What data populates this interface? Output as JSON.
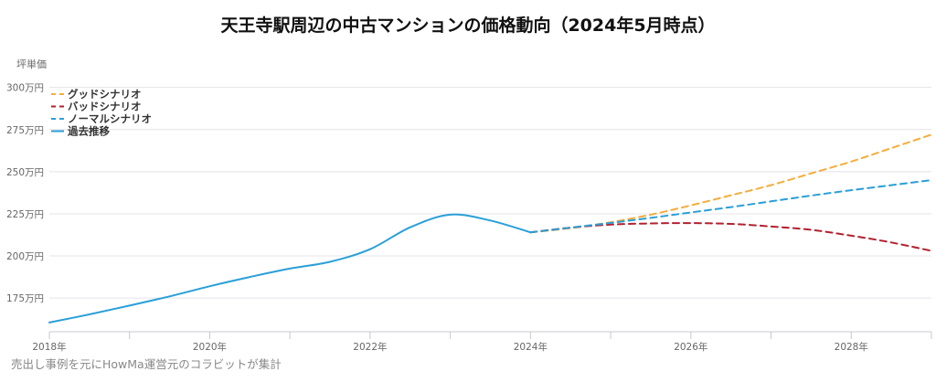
{
  "chart_data": {
    "type": "line",
    "title": "天王寺駅周辺の中古マンションの価格動向（2024年5月時点）",
    "ylabel": "坪単価",
    "xlabel": "",
    "source": "売出し事例を元にHowMa運営元のコラビットが集計",
    "ylim": [
      155,
      302
    ],
    "xlim": [
      2018,
      2029.0
    ],
    "yticks": [
      {
        "value": 175,
        "label": "175万円"
      },
      {
        "value": 200,
        "label": "200万円"
      },
      {
        "value": 225,
        "label": "225万円"
      },
      {
        "value": 250,
        "label": "250万円"
      },
      {
        "value": 275,
        "label": "275万円"
      },
      {
        "value": 300,
        "label": "300万円"
      }
    ],
    "xticks": [
      {
        "value": 2018,
        "label": "2018年"
      },
      {
        "value": 2020,
        "label": "2020年"
      },
      {
        "value": 2022,
        "label": "2022年"
      },
      {
        "value": 2024,
        "label": "2024年"
      },
      {
        "value": 2026,
        "label": "2026年"
      },
      {
        "value": 2028,
        "label": "2028年"
      }
    ],
    "minor_xticks": [
      2019,
      2021,
      2023,
      2025,
      2027,
      2029
    ],
    "grid": true,
    "legend_position": "top-left",
    "series": [
      {
        "name": "グッドシナリオ",
        "color": "#f6ad3c",
        "dash": true,
        "points": [
          [
            2024.0,
            214
          ],
          [
            2024.5,
            216.5
          ],
          [
            2025.0,
            220
          ],
          [
            2025.5,
            224.5
          ],
          [
            2026.0,
            230
          ],
          [
            2026.5,
            236
          ],
          [
            2027.0,
            242
          ],
          [
            2027.5,
            249
          ],
          [
            2028.0,
            256
          ],
          [
            2028.5,
            264
          ],
          [
            2029.0,
            272
          ]
        ]
      },
      {
        "name": "バッドシナリオ",
        "color": "#b2212f",
        "dash": true,
        "points": [
          [
            2024.0,
            214
          ],
          [
            2024.5,
            216.8
          ],
          [
            2025.0,
            218.6
          ],
          [
            2025.5,
            219.3
          ],
          [
            2026.0,
            219.5
          ],
          [
            2026.5,
            219
          ],
          [
            2027.0,
            217.5
          ],
          [
            2027.5,
            215.5
          ],
          [
            2028.0,
            212
          ],
          [
            2028.5,
            208
          ],
          [
            2029.0,
            203
          ]
        ]
      },
      {
        "name": "ノーマルシナリオ",
        "color": "#2a9fd8",
        "dash": true,
        "points": [
          [
            2024.0,
            214
          ],
          [
            2024.5,
            216.8
          ],
          [
            2025.0,
            219.6
          ],
          [
            2025.5,
            222.6
          ],
          [
            2026.0,
            225.8
          ],
          [
            2026.5,
            229
          ],
          [
            2027.0,
            232.4
          ],
          [
            2027.5,
            235.8
          ],
          [
            2028.0,
            239
          ],
          [
            2028.5,
            242
          ],
          [
            2029.0,
            245
          ]
        ]
      },
      {
        "name": "過去推移",
        "color": "#2a9fd8",
        "dash": false,
        "points": [
          [
            2018.0,
            160.5
          ],
          [
            2018.5,
            165.3
          ],
          [
            2019.0,
            170.5
          ],
          [
            2019.5,
            176
          ],
          [
            2020.0,
            182
          ],
          [
            2020.5,
            187.5
          ],
          [
            2021.0,
            192.5
          ],
          [
            2021.5,
            196.5
          ],
          [
            2022.0,
            204
          ],
          [
            2022.5,
            217
          ],
          [
            2023.0,
            224.5
          ],
          [
            2023.5,
            221
          ],
          [
            2024.0,
            214
          ]
        ]
      }
    ]
  }
}
